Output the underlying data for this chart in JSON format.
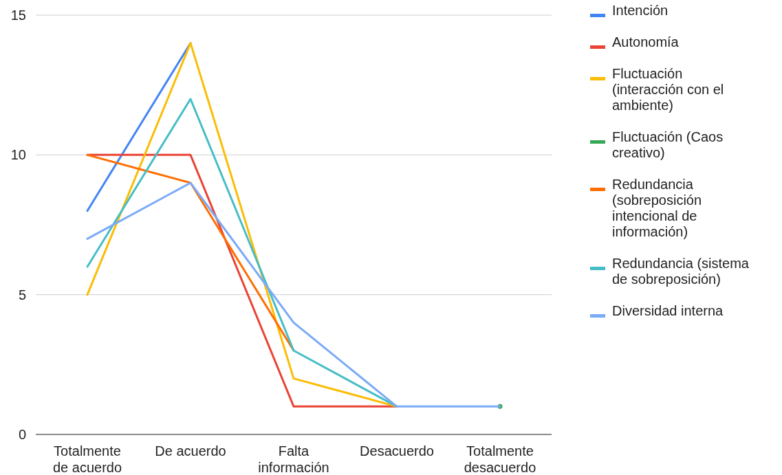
{
  "chart_data": {
    "type": "line",
    "categories": [
      "Totalmente de acuerdo",
      "De acuerdo",
      "Falta información",
      "Desacuerdo",
      "Totalmente desacuerdo"
    ],
    "ylim": [
      0,
      15
    ],
    "yticks": [
      0,
      5,
      10,
      15
    ],
    "grid": "y",
    "legend": "right",
    "series": [
      {
        "name": "Intención",
        "color": "#4285f4",
        "values": [
          8,
          14,
          null,
          null,
          null
        ]
      },
      {
        "name": "Autonomía",
        "color": "#ea4335",
        "values": [
          10,
          10,
          1,
          1,
          null
        ]
      },
      {
        "name": "Fluctuación (interacción con el ambiente)",
        "color": "#fbbc04",
        "values": [
          5,
          14,
          2,
          1,
          null
        ]
      },
      {
        "name": "Fluctuación (Caos creativo)",
        "color": "#34a853",
        "marker": "circle",
        "values": [
          null,
          null,
          null,
          null,
          1
        ]
      },
      {
        "name": "Redundancia (sobreposición intencional de información)",
        "color": "#ff6d01",
        "values": [
          10,
          9,
          3,
          null,
          null
        ]
      },
      {
        "name": "Redundancia (sistema de sobreposición)",
        "color": "#46bdc6",
        "values": [
          6,
          12,
          3,
          1,
          null
        ]
      },
      {
        "name": "Diversidad interna",
        "color": "#7baaf7",
        "values": [
          7,
          9,
          4,
          1,
          1
        ]
      }
    ]
  }
}
